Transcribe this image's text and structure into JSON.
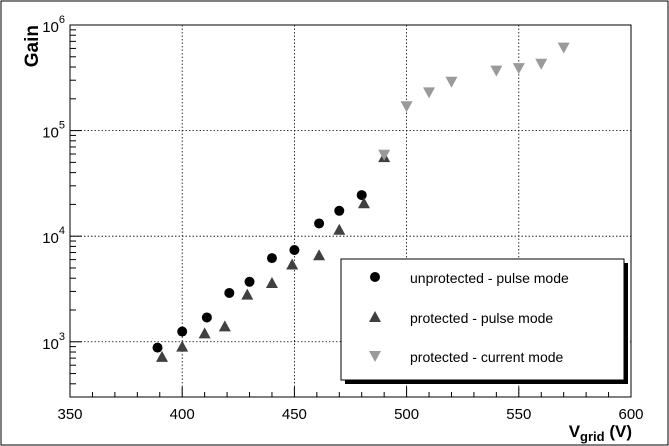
{
  "chart_data": {
    "type": "scatter",
    "title": "",
    "xlabel": {
      "base": "V",
      "sub": "grid",
      "suffix": " (V)"
    },
    "ylabel": "Gain",
    "xlim": [
      350,
      600
    ],
    "ylim": [
      300,
      1000000
    ],
    "yscale": "log",
    "grid": true,
    "legend_position": "bottom-right",
    "x_ticks": [
      {
        "value": 350,
        "label": "350"
      },
      {
        "value": 400,
        "label": "400"
      },
      {
        "value": 450,
        "label": "450"
      },
      {
        "value": 500,
        "label": "500"
      },
      {
        "value": 550,
        "label": "550"
      },
      {
        "value": 600,
        "label": "600"
      }
    ],
    "y_ticks": [
      {
        "value": 1000,
        "base": "10",
        "exp": "3"
      },
      {
        "value": 10000,
        "base": "10",
        "exp": "4"
      },
      {
        "value": 100000,
        "base": "10",
        "exp": "5"
      },
      {
        "value": 1000000,
        "base": "10",
        "exp": "6"
      }
    ],
    "series": [
      {
        "name": "unprotected - pulse mode",
        "marker": "circle",
        "color": "#000000",
        "points": [
          {
            "x": 389,
            "y": 880
          },
          {
            "x": 400,
            "y": 1250
          },
          {
            "x": 411,
            "y": 1700
          },
          {
            "x": 421,
            "y": 2900
          },
          {
            "x": 430,
            "y": 3700
          },
          {
            "x": 440,
            "y": 6200
          },
          {
            "x": 450,
            "y": 7400
          },
          {
            "x": 461,
            "y": 13200
          },
          {
            "x": 470,
            "y": 17400
          },
          {
            "x": 480,
            "y": 24500
          }
        ]
      },
      {
        "name": "protected - pulse mode",
        "marker": "triangle-up",
        "color": "#404040",
        "points": [
          {
            "x": 391,
            "y": 720
          },
          {
            "x": 400,
            "y": 900
          },
          {
            "x": 410,
            "y": 1200
          },
          {
            "x": 419,
            "y": 1400
          },
          {
            "x": 429,
            "y": 2800
          },
          {
            "x": 440,
            "y": 3600
          },
          {
            "x": 449,
            "y": 5400
          },
          {
            "x": 461,
            "y": 6600
          },
          {
            "x": 470,
            "y": 11500
          },
          {
            "x": 481,
            "y": 20500
          },
          {
            "x": 490,
            "y": 56000
          }
        ]
      },
      {
        "name": "protected - current mode",
        "marker": "triangle-down",
        "color": "#9a9a9a",
        "points": [
          {
            "x": 490,
            "y": 59000
          },
          {
            "x": 500,
            "y": 170000
          },
          {
            "x": 510,
            "y": 230000
          },
          {
            "x": 520,
            "y": 290000
          },
          {
            "x": 540,
            "y": 370000
          },
          {
            "x": 550,
            "y": 390000
          },
          {
            "x": 560,
            "y": 430000
          },
          {
            "x": 570,
            "y": 610000
          }
        ]
      }
    ]
  }
}
